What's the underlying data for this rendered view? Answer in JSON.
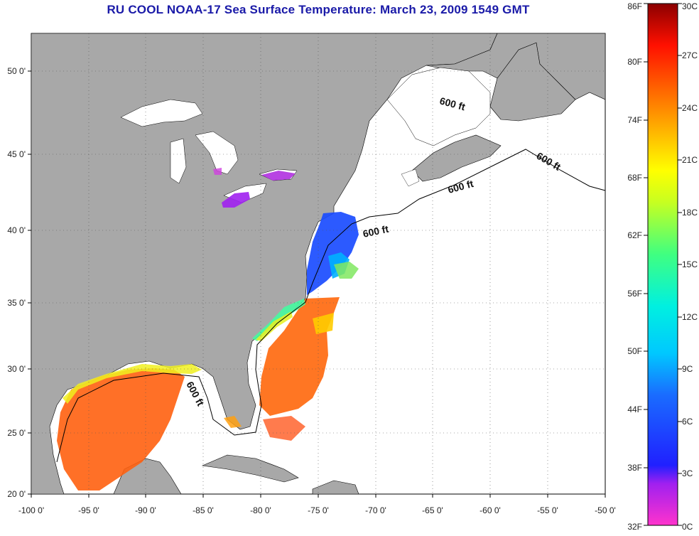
{
  "title": "RU COOL  NOAA-17  Sea Surface Temperature:  March 23, 2009 1549 GMT",
  "x_ticks": [
    "-100 0'",
    "-95 0'",
    "-90 0'",
    "-85 0'",
    "-80 0'",
    "-75 0'",
    "-70 0'",
    "-65 0'",
    "-60 0'",
    "-55 0'",
    "-50 0'"
  ],
  "y_ticks": [
    "50 0'",
    "45 0'",
    "40 0'",
    "35 0'",
    "30 0'",
    "25 0'",
    "20 0'"
  ],
  "contour_labels": [
    "600 ft",
    "600 ft",
    "600 ft",
    "600 ft",
    "600 ft"
  ],
  "colorbar": {
    "fahrenheit": [
      "86F",
      "80F",
      "74F",
      "68F",
      "62F",
      "56F",
      "50F",
      "44F",
      "38F",
      "32F"
    ],
    "celsius": [
      "30C",
      "27C",
      "24C",
      "21C",
      "18C",
      "15C",
      "12C",
      "9C",
      "6C",
      "3C",
      "0C"
    ]
  },
  "colors": {
    "land": "#a8a8a8",
    "ocean": "#ffffff",
    "title": "#1a1aa8",
    "cold": "#1a3cff",
    "warm": "#ff5a10"
  }
}
